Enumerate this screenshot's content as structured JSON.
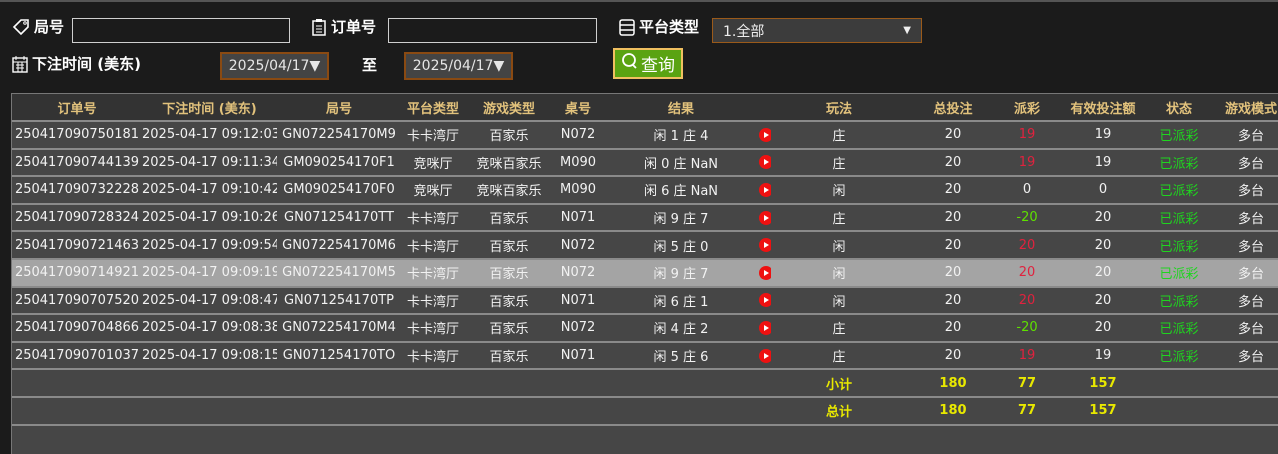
{
  "filters": {
    "round_label": "局号",
    "round_value": "",
    "order_label": "订单号",
    "order_value": "",
    "platform_label": "平台类型",
    "platform_value": "1.全部",
    "time_label": "下注时间 (美东)",
    "date_from": "2025/04/17▼",
    "to_label": "至",
    "date_to": "2025/04/17▼",
    "query_label": "查询"
  },
  "table": {
    "headers": [
      "订单号",
      "下注时间 (美东)",
      "局号",
      "平台类型",
      "游戏类型",
      "桌号",
      "结果",
      "",
      "玩法",
      "总投注",
      "派彩",
      "有效投注额",
      "状态",
      "游戏模式"
    ],
    "rows": [
      [
        "250417090750181",
        "2025-04-17 09:12:03",
        "GN072254170M9",
        "卡卡湾厅",
        "百家乐",
        "N072",
        "闲 1 庄 4",
        "",
        "庄",
        "20",
        "19",
        "19",
        "已派彩",
        "多台"
      ],
      [
        "250417090744139",
        "2025-04-17 09:11:34",
        "GM090254170F1",
        "竞咪厅",
        "竞咪百家乐",
        "M090",
        "闲 0 庄 NaN",
        "",
        "庄",
        "20",
        "19",
        "19",
        "已派彩",
        "多台"
      ],
      [
        "250417090732228",
        "2025-04-17 09:10:42",
        "GM090254170F0",
        "竞咪厅",
        "竞咪百家乐",
        "M090",
        "闲 6 庄 NaN",
        "",
        "闲",
        "20",
        "0",
        "0",
        "已派彩",
        "多台"
      ],
      [
        "250417090728324",
        "2025-04-17 09:10:26",
        "GN071254170TT",
        "卡卡湾厅",
        "百家乐",
        "N071",
        "闲 9 庄 7",
        "",
        "庄",
        "20",
        "-20",
        "20",
        "已派彩",
        "多台"
      ],
      [
        "250417090721463",
        "2025-04-17 09:09:54",
        "GN072254170M6",
        "卡卡湾厅",
        "百家乐",
        "N072",
        "闲 5 庄 0",
        "",
        "闲",
        "20",
        "20",
        "20",
        "已派彩",
        "多台"
      ],
      [
        "250417090714921",
        "2025-04-17 09:09:19",
        "GN072254170M5",
        "卡卡湾厅",
        "百家乐",
        "N072",
        "闲 9 庄 7",
        "",
        "闲",
        "20",
        "20",
        "20",
        "已派彩",
        "多台"
      ],
      [
        "250417090707520",
        "2025-04-17 09:08:47",
        "GN071254170TP",
        "卡卡湾厅",
        "百家乐",
        "N071",
        "闲 6 庄 1",
        "",
        "闲",
        "20",
        "20",
        "20",
        "已派彩",
        "多台"
      ],
      [
        "250417090704866",
        "2025-04-17 09:08:38",
        "GN072254170M4",
        "卡卡湾厅",
        "百家乐",
        "N072",
        "闲 4 庄 2",
        "",
        "庄",
        "20",
        "-20",
        "20",
        "已派彩",
        "多台"
      ],
      [
        "250417090701037",
        "2025-04-17 09:08:15",
        "GN071254170TO",
        "卡卡湾厅",
        "百家乐",
        "N071",
        "闲 5 庄 6",
        "",
        "庄",
        "20",
        "19",
        "19",
        "已派彩",
        "多台"
      ]
    ],
    "highlighted_row": 5,
    "subtotal": {
      "label": "小计",
      "total_bet": "180",
      "payout": "77",
      "valid_bet": "157"
    },
    "total": {
      "label": "总计",
      "total_bet": "180",
      "payout": "77",
      "valid_bet": "157"
    }
  },
  "colors": {
    "payout_positive": "#e0223e",
    "payout_negative": "#5ee000",
    "status": "#1fd51f",
    "summary": "#e8e800",
    "header_text": "#e2c27c",
    "query_button": "#5aa312"
  }
}
